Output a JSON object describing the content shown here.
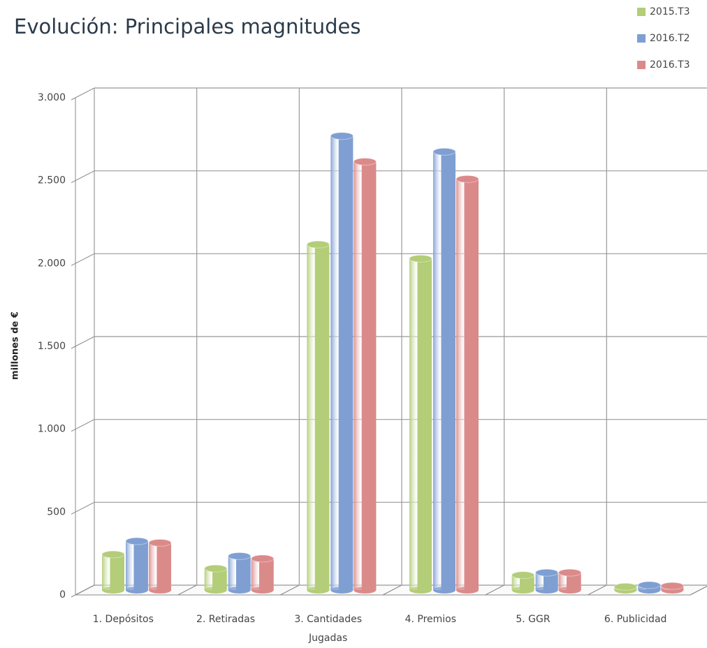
{
  "chart_data": {
    "type": "bar",
    "title": "Evolución: Principales magnitudes",
    "y_label": "millones de €",
    "categories": [
      "1. Depósitos",
      "2. Retiradas",
      "3. Cantidades Jugadas",
      "4. Premios",
      "5. GGR",
      "6. Publicidad"
    ],
    "series": [
      {
        "name": "2015.T3",
        "color": "#b3cd78",
        "values": [
          215,
          130,
          2085,
          2000,
          90,
          20
        ]
      },
      {
        "name": "2016.T2",
        "color": "#7f9fd3",
        "values": [
          295,
          205,
          2740,
          2645,
          105,
          30
        ]
      },
      {
        "name": "2016.T3",
        "color": "#db8a8a",
        "values": [
          285,
          190,
          2585,
          2480,
          105,
          25
        ]
      }
    ],
    "ylim": [
      0,
      3000
    ],
    "yticks": [
      0,
      500,
      {
        "value": 1000,
        "label": "1.000"
      },
      {
        "value": 1500,
        "label": "1.500"
      },
      {
        "value": 2000,
        "label": "2.000"
      },
      {
        "value": 2500,
        "label": "2.500"
      },
      {
        "value": 3000,
        "label": "3.000"
      }
    ],
    "grid": true,
    "legend": "top-right"
  }
}
